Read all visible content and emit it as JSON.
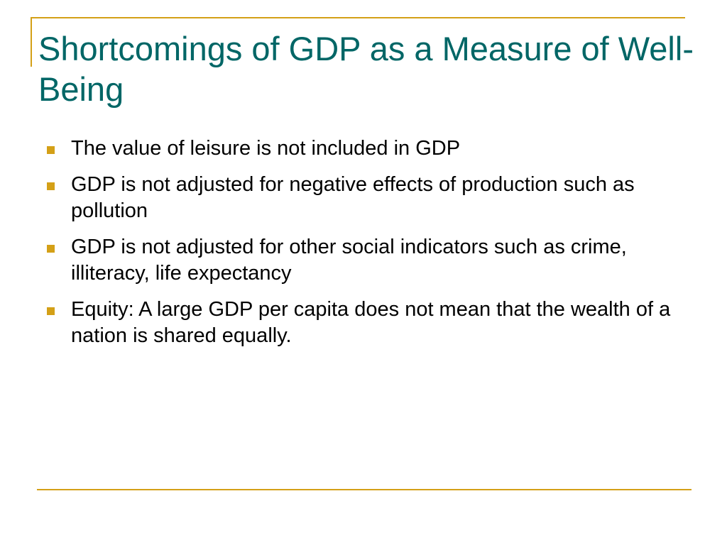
{
  "slide": {
    "title": "Shortcomings of GDP as a Measure of Well-Being",
    "bullets": [
      "The value of leisure is not included in GDP",
      "GDP is not adjusted for negative effects of production such as pollution",
      "GDP is not adjusted for other social indicators such as crime, illiteracy, life expectancy",
      "Equity: A large GDP per capita does not mean that the wealth of a nation is shared equally."
    ]
  },
  "colors": {
    "title": "#006666",
    "accent": "#d4a017",
    "text": "#000000",
    "background": "#ffffff"
  },
  "icons": {
    "bullet": "square-bullet-icon"
  }
}
